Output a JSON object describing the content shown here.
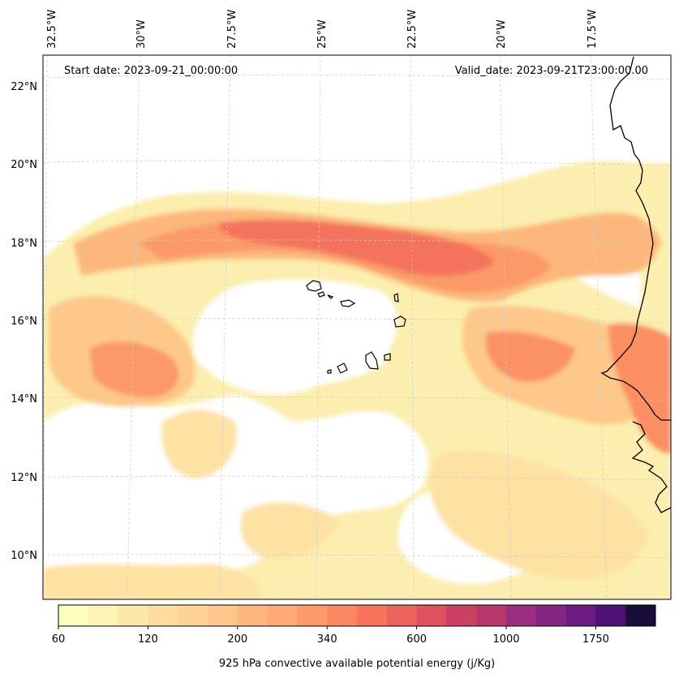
{
  "header": {
    "start_date": "Start date: 2023-09-21_00:00:00",
    "valid_date": "Valid_date: 2023-09-21T23:00:00.00"
  },
  "map": {
    "projection": "conic",
    "longitude_labels": [
      "32.5°W",
      "30°W",
      "27.5°W",
      "25°W",
      "22.5°W",
      "20°W",
      "17.5°W"
    ],
    "latitude_labels": [
      "22°N",
      "20°N",
      "18°N",
      "16°N",
      "14°N",
      "12°N",
      "10°N"
    ],
    "gridlines": "dashed light gray",
    "coastline_color": "#000000",
    "fill_palette": "magma_r"
  },
  "colorbar": {
    "label": "925 hPa convective available potential energy (j/Kg)",
    "tick_labels": [
      "60",
      "120",
      "200",
      "340",
      "600",
      "1000",
      "1750"
    ],
    "colors": [
      "#fcfdbf",
      "#fcf3b4",
      "#fce9aa",
      "#fddea0",
      "#fed395",
      "#fec68a",
      "#feb87f",
      "#fdaa75",
      "#fd9b6a",
      "#fb8861",
      "#f6755c",
      "#ec635c",
      "#e0515e",
      "#cb4063",
      "#b6386b",
      "#9c2e7f",
      "#832681",
      "#6a1c81",
      "#4e1174",
      "#1a0e3b"
    ]
  }
}
